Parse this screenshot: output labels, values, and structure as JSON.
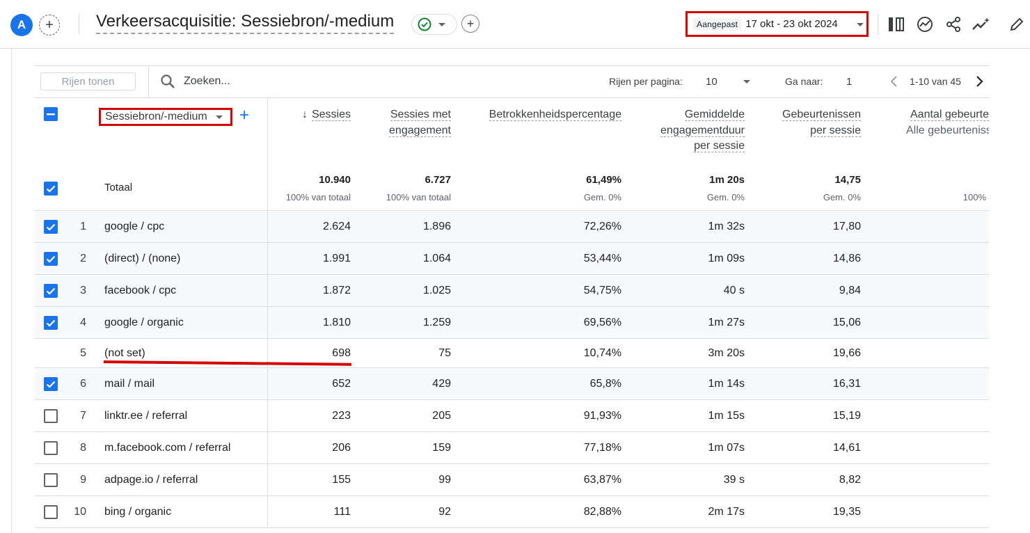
{
  "header": {
    "avatar_letter": "A",
    "title": "Verkeersacquisitie: Sessiebron/-medium",
    "date_badge": "Aangepast",
    "date_range": "17 okt - 23 okt 2024"
  },
  "toolbar": {
    "rows_button": "Rijen tonen",
    "search_placeholder": "Zoeken...",
    "rows_per_page_label": "Rijen per pagina:",
    "rows_per_page_value": "10",
    "goto_label": "Ga naar:",
    "goto_value": "1",
    "page_range": "1-10 van 45"
  },
  "table": {
    "dimension": "Sessiebron/-medium",
    "columns": {
      "sessions": "Sessies",
      "engaged_1": "Sessies met",
      "engaged_2": "engagement",
      "engagement_rate": "Betrokkenheidspercentage",
      "avg_1": "Gemiddelde",
      "avg_2": "engagementduur",
      "avg_3": "per sessie",
      "events_1": "Gebeurtenissen",
      "events_2": "per sessie",
      "event_count": "Aantal gebeurte",
      "event_count_sub": "Alle gebeurteniss"
    },
    "totals": {
      "label": "Totaal",
      "sessions": "10.940",
      "sessions_sub": "100% van totaal",
      "engaged": "6.727",
      "engaged_sub": "100% van totaal",
      "rate": "61,49%",
      "rate_sub": "Gem. 0%",
      "duration": "1m 20s",
      "duration_sub": "Gem. 0%",
      "events": "14,75",
      "events_sub": "Gem. 0%",
      "count_sub": "100%"
    },
    "rows": [
      {
        "num": "1",
        "name": "google / cpc",
        "sessions": "2.624",
        "engaged": "1.896",
        "rate": "72,26%",
        "duration": "1m 32s",
        "events": "17,80"
      },
      {
        "num": "2",
        "name": "(direct) / (none)",
        "sessions": "1.991",
        "engaged": "1.064",
        "rate": "53,44%",
        "duration": "1m 09s",
        "events": "14,86"
      },
      {
        "num": "3",
        "name": "facebook / cpc",
        "sessions": "1.872",
        "engaged": "1.025",
        "rate": "54,75%",
        "duration": "40 s",
        "events": "9,84"
      },
      {
        "num": "4",
        "name": "google / organic",
        "sessions": "1.810",
        "engaged": "1.259",
        "rate": "69,56%",
        "duration": "1m 27s",
        "events": "15,06"
      },
      {
        "num": "5",
        "name": "(not set)",
        "sessions": "698",
        "engaged": "75",
        "rate": "10,74%",
        "duration": "3m 20s",
        "events": "19,66"
      },
      {
        "num": "6",
        "name": "mail / mail",
        "sessions": "652",
        "engaged": "429",
        "rate": "65,8%",
        "duration": "1m 14s",
        "events": "16,31"
      },
      {
        "num": "7",
        "name": "linktr.ee / referral",
        "sessions": "223",
        "engaged": "205",
        "rate": "91,93%",
        "duration": "1m 15s",
        "events": "15,19"
      },
      {
        "num": "8",
        "name": "m.facebook.com / referral",
        "sessions": "206",
        "engaged": "159",
        "rate": "77,18%",
        "duration": "1m 07s",
        "events": "14,61"
      },
      {
        "num": "9",
        "name": "adpage.io / referral",
        "sessions": "155",
        "engaged": "99",
        "rate": "63,87%",
        "duration": "39 s",
        "events": "8,82"
      },
      {
        "num": "10",
        "name": "bing / organic",
        "sessions": "111",
        "engaged": "92",
        "rate": "82,88%",
        "duration": "2m 17s",
        "events": "19,35"
      }
    ]
  }
}
